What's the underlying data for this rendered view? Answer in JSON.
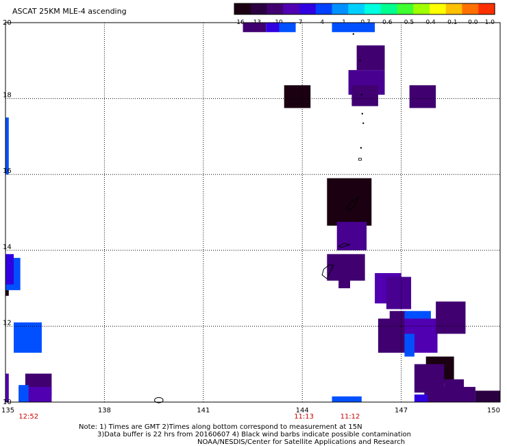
{
  "title": "ASCAT 25KM MLE-4 ascending",
  "colorbar": {
    "labels": [
      "-16",
      "-13",
      "-10",
      "-7",
      "-4",
      "-1",
      "-0.7",
      "-0.6",
      "-0.5",
      "-0.4",
      "-0.1",
      "0.0",
      "1.0"
    ],
    "colors": [
      "#1a0010",
      "#2a0040",
      "#400070",
      "#5000b0",
      "#3000e0",
      "#0040ff",
      "#0090ff",
      "#00d0ff",
      "#00ffe0",
      "#00ff90",
      "#40ff30",
      "#a0ff00",
      "#ffff00",
      "#ffc000",
      "#ff7000",
      "#ff3000"
    ]
  },
  "chart_data": {
    "type": "heatmap",
    "title": "ASCAT 25KM MLE-4 ascending",
    "xlim": [
      135,
      150
    ],
    "ylim": [
      10,
      20
    ],
    "xticks": [
      "135",
      "138",
      "141",
      "144",
      "147",
      "150"
    ],
    "yticks": [
      "10",
      "12",
      "14",
      "16",
      "18",
      "20"
    ],
    "grid": true,
    "grid_lon": [
      138,
      141,
      144,
      147
    ],
    "grid_lat": [
      12,
      14,
      16,
      18
    ],
    "time_labels": [
      {
        "text": "12:52",
        "lon": 135.7
      },
      {
        "text": "11:13",
        "lon": 144.05
      },
      {
        "text": "11:12",
        "lon": 145.45
      }
    ],
    "time_color": "#cc0000",
    "cells": [
      {
        "lon0": 142.2,
        "lon1": 142.9,
        "lat0": 19.75,
        "lat1": 20.0,
        "color": "#400070"
      },
      {
        "lon0": 142.9,
        "lon1": 143.3,
        "lat0": 19.75,
        "lat1": 20.0,
        "color": "#3000e0"
      },
      {
        "lon0": 143.3,
        "lon1": 143.8,
        "lat0": 19.75,
        "lat1": 20.0,
        "color": "#0050ff"
      },
      {
        "lon0": 144.9,
        "lon1": 146.2,
        "lat0": 19.75,
        "lat1": 20.0,
        "color": "#0050ff"
      },
      {
        "lon0": 145.65,
        "lon1": 146.5,
        "lat0": 18.75,
        "lat1": 19.4,
        "color": "#400070"
      },
      {
        "lon0": 145.4,
        "lon1": 146.5,
        "lat0": 18.1,
        "lat1": 18.75,
        "color": "#480090"
      },
      {
        "lon0": 145.5,
        "lon1": 146.3,
        "lat0": 17.8,
        "lat1": 18.35,
        "color": "#400070"
      },
      {
        "lon0": 143.45,
        "lon1": 144.25,
        "lat0": 17.75,
        "lat1": 18.35,
        "color": "#1a0010"
      },
      {
        "lon0": 147.25,
        "lon1": 148.05,
        "lat0": 17.75,
        "lat1": 18.35,
        "color": "#400070"
      },
      {
        "lon0": 135.0,
        "lon1": 135.1,
        "lat0": 16.0,
        "lat1": 17.5,
        "color": "#0050ff"
      },
      {
        "lon0": 144.75,
        "lon1": 146.1,
        "lat0": 14.65,
        "lat1": 15.9,
        "color": "#1a0010"
      },
      {
        "lon0": 145.05,
        "lon1": 145.95,
        "lat0": 14.0,
        "lat1": 14.75,
        "color": "#480090"
      },
      {
        "lon0": 144.75,
        "lon1": 145.9,
        "lat0": 13.2,
        "lat1": 13.9,
        "color": "#400070"
      },
      {
        "lon0": 145.1,
        "lon1": 145.45,
        "lat0": 13.0,
        "lat1": 13.5,
        "color": "#400070"
      },
      {
        "lon0": 135.0,
        "lon1": 135.45,
        "lat0": 12.95,
        "lat1": 13.8,
        "color": "#0050ff"
      },
      {
        "lon0": 135.0,
        "lon1": 135.25,
        "lat0": 13.1,
        "lat1": 13.9,
        "color": "#3000e0"
      },
      {
        "lon0": 135.0,
        "lon1": 135.1,
        "lat0": 12.8,
        "lat1": 12.95,
        "color": "#1a0010"
      },
      {
        "lon0": 146.2,
        "lon1": 147.0,
        "lat0": 12.6,
        "lat1": 13.4,
        "color": "#5000b0"
      },
      {
        "lon0": 146.55,
        "lon1": 147.3,
        "lat0": 12.45,
        "lat1": 13.3,
        "color": "#480090"
      },
      {
        "lon0": 135.25,
        "lon1": 136.1,
        "lat0": 11.3,
        "lat1": 12.1,
        "color": "#0050ff"
      },
      {
        "lon0": 146.3,
        "lon1": 147.2,
        "lat0": 11.3,
        "lat1": 12.2,
        "color": "#400070"
      },
      {
        "lon0": 146.65,
        "lon1": 147.15,
        "lat0": 11.9,
        "lat1": 12.4,
        "color": "#400070"
      },
      {
        "lon0": 147.1,
        "lon1": 147.9,
        "lat0": 12.0,
        "lat1": 12.4,
        "color": "#0050ff"
      },
      {
        "lon0": 147.1,
        "lon1": 148.1,
        "lat0": 11.3,
        "lat1": 12.2,
        "color": "#5000b0"
      },
      {
        "lon0": 147.1,
        "lon1": 147.4,
        "lat0": 11.2,
        "lat1": 11.8,
        "color": "#0050ff"
      },
      {
        "lon0": 148.05,
        "lon1": 148.95,
        "lat0": 11.8,
        "lat1": 12.65,
        "color": "#400070"
      },
      {
        "lon0": 147.75,
        "lon1": 148.6,
        "lat0": 10.5,
        "lat1": 11.2,
        "color": "#1a0010"
      },
      {
        "lon0": 147.4,
        "lon1": 148.3,
        "lat0": 10.25,
        "lat1": 11.0,
        "color": "#400070"
      },
      {
        "lon0": 148.3,
        "lon1": 148.9,
        "lat0": 10.1,
        "lat1": 10.6,
        "color": "#400070"
      },
      {
        "lon0": 147.7,
        "lon1": 149.25,
        "lat0": 10.0,
        "lat1": 10.4,
        "color": "#400070"
      },
      {
        "lon0": 149.25,
        "lon1": 150.0,
        "lat0": 10.0,
        "lat1": 10.3,
        "color": "#2a0040"
      },
      {
        "lon0": 147.4,
        "lon1": 147.8,
        "lat0": 10.0,
        "lat1": 10.2,
        "color": "#3000e0"
      },
      {
        "lon0": 135.6,
        "lon1": 136.4,
        "lat0": 10.15,
        "lat1": 10.75,
        "color": "#400070"
      },
      {
        "lon0": 135.4,
        "lon1": 136.4,
        "lat0": 10.0,
        "lat1": 10.4,
        "color": "#5000b0"
      },
      {
        "lon0": 135.4,
        "lon1": 135.7,
        "lat0": 10.0,
        "lat1": 10.45,
        "color": "#0050ff"
      },
      {
        "lon0": 135.0,
        "lon1": 135.1,
        "lat0": 10.0,
        "lat1": 10.75,
        "color": "#5000b0"
      },
      {
        "lon0": 144.9,
        "lon1": 145.8,
        "lat0": 10.0,
        "lat1": 10.15,
        "color": "#0050ff"
      }
    ],
    "coastlines": [
      {
        "type": "ellipse",
        "lon": 139.65,
        "lat": 10.05,
        "rlon": 0.13,
        "rlat": 0.07
      },
      {
        "type": "path",
        "points": [
          [
            145.35,
            15.1
          ],
          [
            145.45,
            15.25
          ],
          [
            145.7,
            15.4
          ],
          [
            145.6,
            15.2
          ],
          [
            145.45,
            15.05
          ],
          [
            145.35,
            15.1
          ]
        ]
      },
      {
        "type": "path",
        "points": [
          [
            145.1,
            14.1
          ],
          [
            145.25,
            14.18
          ],
          [
            145.45,
            14.15
          ],
          [
            145.2,
            14.08
          ],
          [
            145.1,
            14.1
          ]
        ]
      },
      {
        "type": "path",
        "points": [
          [
            144.75,
            13.25
          ],
          [
            144.85,
            13.45
          ],
          [
            144.95,
            13.6
          ],
          [
            144.82,
            13.62
          ],
          [
            144.65,
            13.5
          ],
          [
            144.6,
            13.35
          ],
          [
            144.75,
            13.25
          ]
        ]
      },
      {
        "type": "dot",
        "lon": 145.8,
        "lat": 18.1
      },
      {
        "type": "dot",
        "lon": 145.82,
        "lat": 17.6
      },
      {
        "type": "dot",
        "lon": 145.85,
        "lat": 17.35
      },
      {
        "type": "dot",
        "lon": 145.78,
        "lat": 16.7
      },
      {
        "type": "rect",
        "lon": 145.75,
        "lat": 16.4
      },
      {
        "type": "dot",
        "lon": 145.55,
        "lat": 19.7
      },
      {
        "type": "dot",
        "lon": 145.75,
        "lat": 19.0
      }
    ]
  },
  "notes": {
    "line1": "Note: 1) Times are GMT 2)Times along bottom correspond to measurement at 15N",
    "line2": "3)Data buffer is 22 hrs from 20160607 4) Black wind barbs indicate possible contamination",
    "line3": "NOAA/NESDIS/Center for Satellite Applications and Research"
  }
}
